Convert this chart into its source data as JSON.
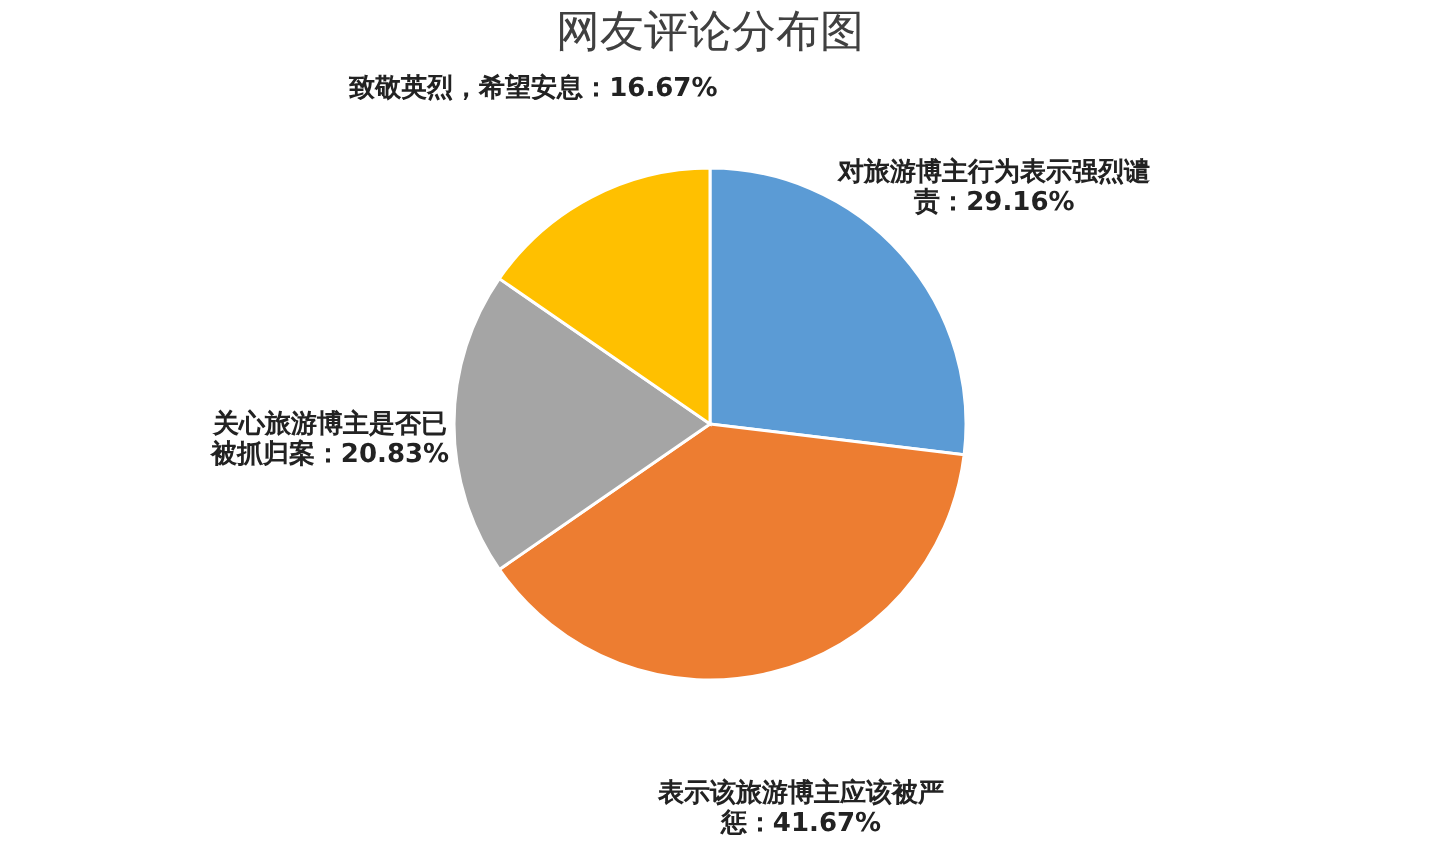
{
  "chart_data": {
    "type": "pie",
    "title": "网友评论分布图",
    "categories": [
      "对旅游博主行为表示强烈谴责",
      "表示该旅游博主应该被严惩",
      "关心旅游博主是否已被抓归案",
      "致敬英烈，希望安息"
    ],
    "values": [
      29.16,
      41.67,
      20.83,
      16.67
    ],
    "value_labels": [
      "29.16%",
      "41.67%",
      "20.83%",
      "16.67%"
    ],
    "colors": [
      "#5b9bd5",
      "#ed7d31",
      "#a5a5a5",
      "#ffc000"
    ],
    "legend": false
  }
}
